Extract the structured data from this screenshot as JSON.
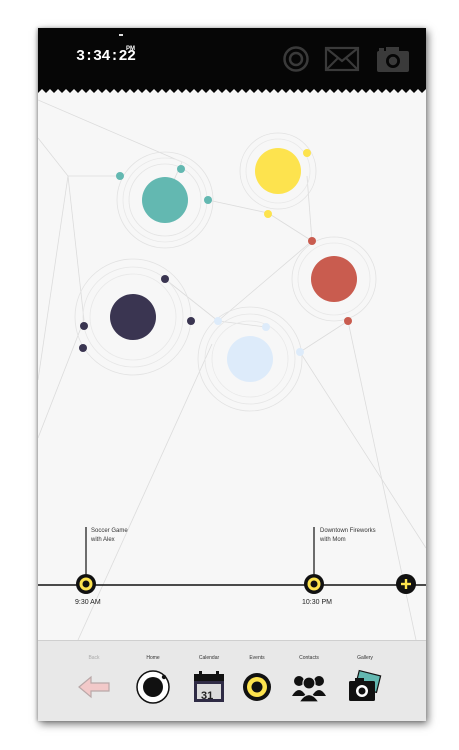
{
  "status_bar": {
    "time": "3:34:22",
    "ampm": "PM",
    "icons": [
      "target-icon",
      "mail-icon",
      "camera-icon"
    ]
  },
  "timeline": {
    "events": [
      {
        "title_line1": "Soccer Game",
        "title_line2": "with Alex",
        "time": "9:30 AM"
      },
      {
        "title_line1": "Downtown Fireworks",
        "title_line2": "with Mom",
        "time": "10:30 PM"
      }
    ],
    "add_symbol": "+"
  },
  "navbar": {
    "items": [
      {
        "label": "Back",
        "icon": "back-arrow-icon"
      },
      {
        "label": "Home",
        "icon": "home-planet-icon"
      },
      {
        "label": "Calendar",
        "icon": "calendar-icon",
        "day": "31"
      },
      {
        "label": "Events",
        "icon": "events-ring-icon"
      },
      {
        "label": "Contacts",
        "icon": "contacts-icon"
      },
      {
        "label": "Gallery",
        "icon": "gallery-icon"
      }
    ]
  },
  "colors": {
    "teal": "#63b8b1",
    "yellow": "#fde34e",
    "red": "#c95c4f",
    "navy": "#3a3551",
    "pale_blue": "#ddebfa",
    "ring_yellow": "#fde34e"
  }
}
